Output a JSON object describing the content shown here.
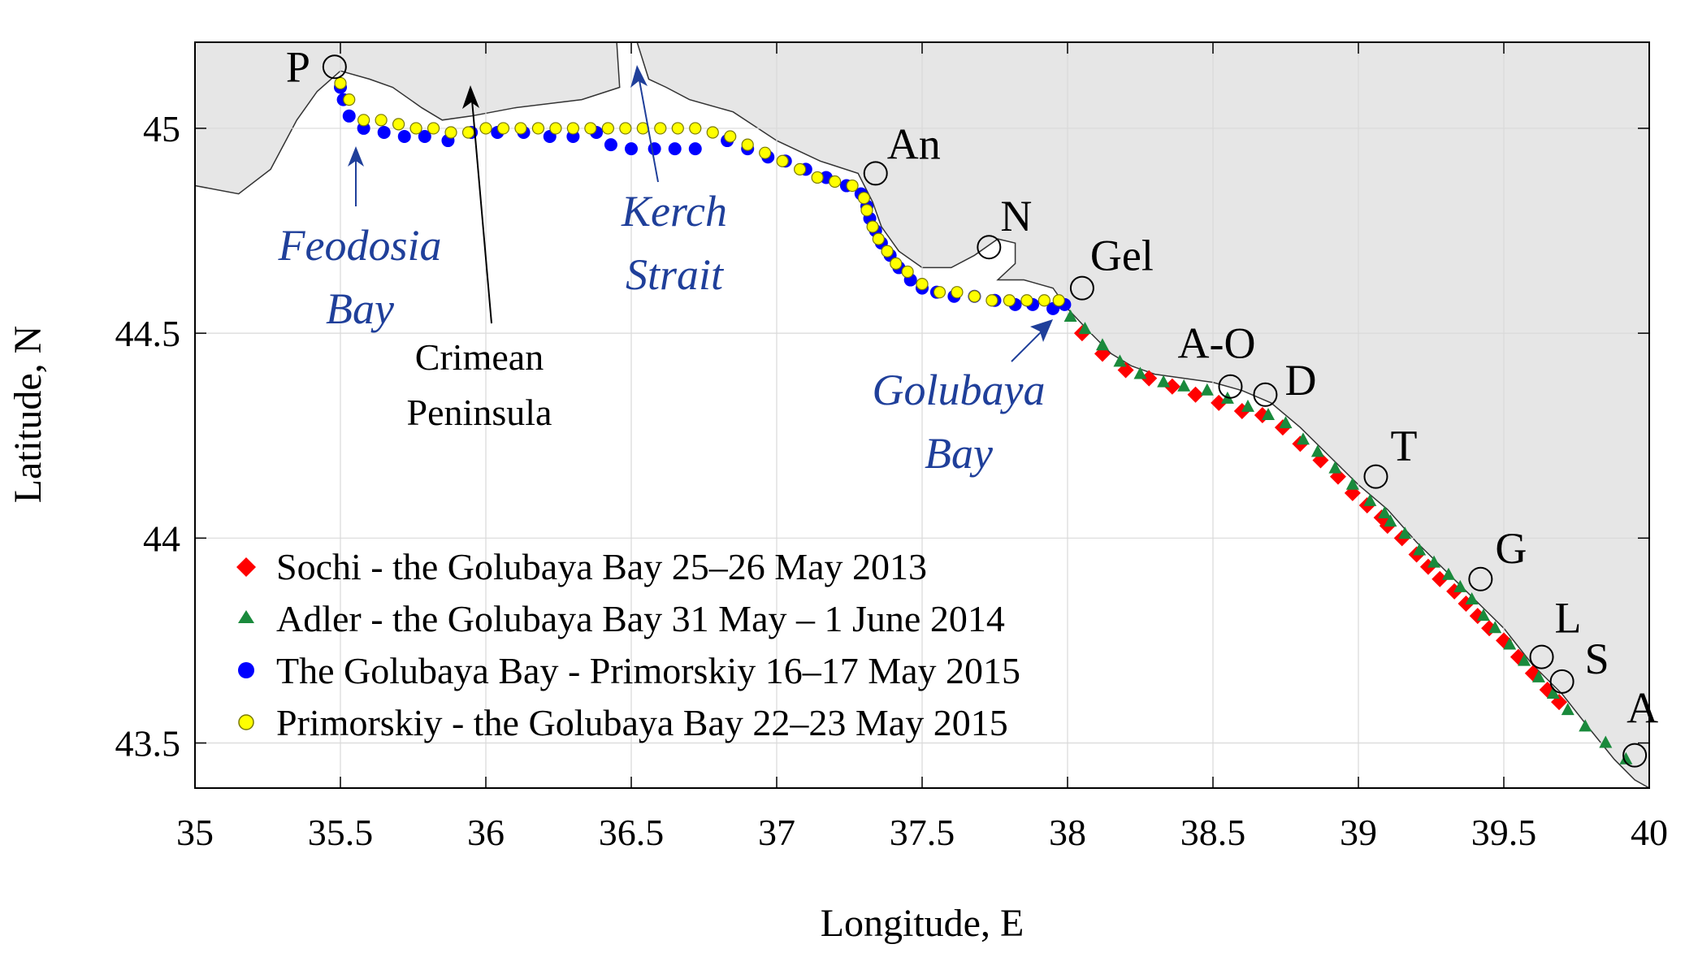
{
  "chart_data": {
    "type": "scatter",
    "xlabel": "Longitude, E",
    "ylabel": "Latitude, N",
    "xlim": [
      35,
      40
    ],
    "ylim": [
      43.39,
      45.21
    ],
    "x_ticks": [
      "35",
      "35.5",
      "36",
      "36.5",
      "37",
      "37.5",
      "38",
      "38.5",
      "39",
      "39.5",
      "40"
    ],
    "y_ticks": [
      "43.5",
      "44",
      "44.5",
      "45"
    ],
    "grid": true,
    "legend_position": "lower-left",
    "land_color": "#e6e6e6",
    "sea_color": "#ffffff",
    "series": [
      {
        "name": "Sochi - the Golubaya Bay 25–26 May 2013",
        "marker": "diamond",
        "color": "#ff0000",
        "points": [
          [
            38.05,
            44.5
          ],
          [
            38.12,
            44.45
          ],
          [
            38.2,
            44.41
          ],
          [
            38.28,
            44.39
          ],
          [
            38.36,
            44.37
          ],
          [
            38.44,
            44.35
          ],
          [
            38.52,
            44.33
          ],
          [
            38.6,
            44.31
          ],
          [
            38.67,
            44.3
          ],
          [
            38.74,
            44.27
          ],
          [
            38.8,
            44.23
          ],
          [
            38.87,
            44.19
          ],
          [
            38.93,
            44.15
          ],
          [
            38.98,
            44.11
          ],
          [
            39.03,
            44.08
          ],
          [
            39.08,
            44.05
          ],
          [
            39.1,
            44.03
          ],
          [
            39.15,
            44
          ],
          [
            39.2,
            43.96
          ],
          [
            39.24,
            43.93
          ],
          [
            39.28,
            43.9
          ],
          [
            39.33,
            43.87
          ],
          [
            39.37,
            43.84
          ],
          [
            39.41,
            43.81
          ],
          [
            39.45,
            43.78
          ],
          [
            39.5,
            43.75
          ],
          [
            39.55,
            43.71
          ],
          [
            39.6,
            43.67
          ],
          [
            39.65,
            43.63
          ],
          [
            39.69,
            43.6
          ]
        ]
      },
      {
        "name": "Adler - the Golubaya Bay 31 May – 1 June 2014",
        "marker": "triangle",
        "color": "#1a8a3c",
        "points": [
          [
            38.01,
            44.54
          ],
          [
            38.06,
            44.51
          ],
          [
            38.12,
            44.47
          ],
          [
            38.18,
            44.43
          ],
          [
            38.25,
            44.4
          ],
          [
            38.33,
            44.38
          ],
          [
            38.4,
            44.37
          ],
          [
            38.48,
            44.36
          ],
          [
            38.55,
            44.34
          ],
          [
            38.62,
            44.32
          ],
          [
            38.69,
            44.3
          ],
          [
            38.75,
            44.28
          ],
          [
            38.81,
            44.24
          ],
          [
            38.86,
            44.21
          ],
          [
            38.92,
            44.17
          ],
          [
            38.98,
            44.13
          ],
          [
            39.04,
            44.09
          ],
          [
            39.09,
            44.06
          ],
          [
            39.11,
            44.04
          ],
          [
            39.16,
            44.01
          ],
          [
            39.21,
            43.97
          ],
          [
            39.26,
            43.94
          ],
          [
            39.31,
            43.91
          ],
          [
            39.35,
            43.88
          ],
          [
            39.39,
            43.85
          ],
          [
            39.43,
            43.81
          ],
          [
            39.47,
            43.78
          ],
          [
            39.52,
            43.74
          ],
          [
            39.57,
            43.7
          ],
          [
            39.62,
            43.66
          ],
          [
            39.67,
            43.62
          ],
          [
            39.72,
            43.58
          ],
          [
            39.78,
            43.54
          ],
          [
            39.85,
            43.5
          ],
          [
            39.92,
            43.46
          ]
        ]
      },
      {
        "name": "The Golubaya Bay - Primorskiy 16–17 May 2015",
        "marker": "circle",
        "color": "#0000ff",
        "points": [
          [
            35.5,
            45.1
          ],
          [
            35.51,
            45.07
          ],
          [
            35.53,
            45.03
          ],
          [
            35.58,
            45
          ],
          [
            35.65,
            44.99
          ],
          [
            35.72,
            44.98
          ],
          [
            35.79,
            44.98
          ],
          [
            35.87,
            44.97
          ],
          [
            35.95,
            44.99
          ],
          [
            36.04,
            44.99
          ],
          [
            36.13,
            44.99
          ],
          [
            36.22,
            44.98
          ],
          [
            36.3,
            44.98
          ],
          [
            36.38,
            44.99
          ],
          [
            36.43,
            44.96
          ],
          [
            36.5,
            44.95
          ],
          [
            36.58,
            44.95
          ],
          [
            36.65,
            44.95
          ],
          [
            36.72,
            44.95
          ],
          [
            36.83,
            44.97
          ],
          [
            36.9,
            44.95
          ],
          [
            36.97,
            44.93
          ],
          [
            37.03,
            44.92
          ],
          [
            37.1,
            44.9
          ],
          [
            37.17,
            44.88
          ],
          [
            37.24,
            44.86
          ],
          [
            37.29,
            44.84
          ],
          [
            37.31,
            44.81
          ],
          [
            37.32,
            44.78
          ],
          [
            37.34,
            44.75
          ],
          [
            37.36,
            44.72
          ],
          [
            37.39,
            44.69
          ],
          [
            37.42,
            44.66
          ],
          [
            37.46,
            44.63
          ],
          [
            37.5,
            44.61
          ],
          [
            37.55,
            44.6
          ],
          [
            37.61,
            44.59
          ],
          [
            37.68,
            44.59
          ],
          [
            37.75,
            44.58
          ],
          [
            37.82,
            44.57
          ],
          [
            37.88,
            44.57
          ],
          [
            37.95,
            44.56
          ],
          [
            37.99,
            44.57
          ]
        ]
      },
      {
        "name": "Primorskiy - the Golubaya Bay 22–23 May 2015",
        "marker": "circle",
        "color": "#ffff00",
        "points": [
          [
            35.5,
            45.11
          ],
          [
            35.53,
            45.07
          ],
          [
            35.58,
            45.02
          ],
          [
            35.64,
            45.02
          ],
          [
            35.7,
            45.01
          ],
          [
            35.76,
            45
          ],
          [
            35.82,
            45
          ],
          [
            35.88,
            44.99
          ],
          [
            35.94,
            44.99
          ],
          [
            36,
            45
          ],
          [
            36.06,
            45
          ],
          [
            36.12,
            45
          ],
          [
            36.18,
            45
          ],
          [
            36.24,
            45
          ],
          [
            36.3,
            45
          ],
          [
            36.36,
            45
          ],
          [
            36.42,
            45
          ],
          [
            36.48,
            45
          ],
          [
            36.54,
            45
          ],
          [
            36.6,
            45
          ],
          [
            36.66,
            45
          ],
          [
            36.72,
            45
          ],
          [
            36.78,
            44.99
          ],
          [
            36.84,
            44.98
          ],
          [
            36.9,
            44.96
          ],
          [
            36.96,
            44.94
          ],
          [
            37.02,
            44.92
          ],
          [
            37.08,
            44.9
          ],
          [
            37.14,
            44.88
          ],
          [
            37.2,
            44.87
          ],
          [
            37.26,
            44.86
          ],
          [
            37.3,
            44.83
          ],
          [
            37.31,
            44.8
          ],
          [
            37.33,
            44.76
          ],
          [
            37.35,
            44.73
          ],
          [
            37.38,
            44.7
          ],
          [
            37.41,
            44.67
          ],
          [
            37.45,
            44.65
          ],
          [
            37.5,
            44.62
          ],
          [
            37.56,
            44.6
          ],
          [
            37.62,
            44.6
          ],
          [
            37.68,
            44.59
          ],
          [
            37.74,
            44.58
          ],
          [
            37.8,
            44.58
          ],
          [
            37.86,
            44.58
          ],
          [
            37.92,
            44.58
          ],
          [
            37.97,
            44.58
          ]
        ]
      }
    ]
  },
  "sites": [
    {
      "label": "P",
      "lon": 35.48,
      "lat": 45.15
    },
    {
      "label": "An",
      "lon": 37.34,
      "lat": 44.89
    },
    {
      "label": "N",
      "lon": 37.73,
      "lat": 44.71
    },
    {
      "label": "Gel",
      "lon": 38.05,
      "lat": 44.61
    },
    {
      "label": "A-O",
      "lon": 38.56,
      "lat": 44.37
    },
    {
      "label": "D",
      "lon": 38.68,
      "lat": 44.35
    },
    {
      "label": "T",
      "lon": 39.06,
      "lat": 44.15
    },
    {
      "label": "G",
      "lon": 39.42,
      "lat": 43.9
    },
    {
      "label": "L",
      "lon": 39.63,
      "lat": 43.71
    },
    {
      "label": "S",
      "lon": 39.7,
      "lat": 43.65
    },
    {
      "label": "A",
      "lon": 39.95,
      "lat": 43.47
    }
  ],
  "annotations": {
    "feodosia": [
      "Feodosia",
      "Bay"
    ],
    "kerch": [
      "Kerch",
      "Strait"
    ],
    "golubaya": [
      "Golubaya",
      "Bay"
    ],
    "crimean": [
      "Crimean",
      "Peninsula"
    ]
  }
}
